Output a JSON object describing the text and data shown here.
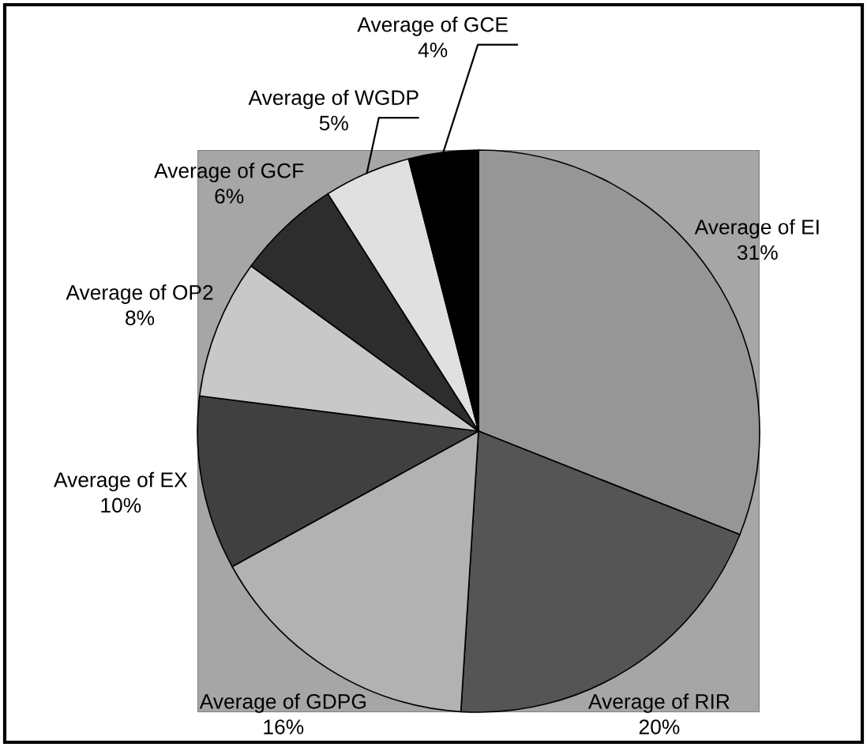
{
  "chart_data": {
    "type": "pie",
    "categories": [
      "Average of EI",
      "Average of RIR",
      "Average of GDPG",
      "Average of EX",
      "Average of OP2",
      "Average of GCF",
      "Average of WGDP",
      "Average of GCE"
    ],
    "values": [
      31,
      20,
      16,
      10,
      8,
      6,
      5,
      4
    ],
    "colors": [
      "#969696",
      "#555555",
      "#b2b2b2",
      "#404040",
      "#c8c8c8",
      "#2d2d2d",
      "#e0e0e0",
      "#000000"
    ],
    "value_labels": [
      "31%",
      "20%",
      "16%",
      "10%",
      "8%",
      "6%",
      "5%",
      "4%"
    ],
    "legend": false
  }
}
